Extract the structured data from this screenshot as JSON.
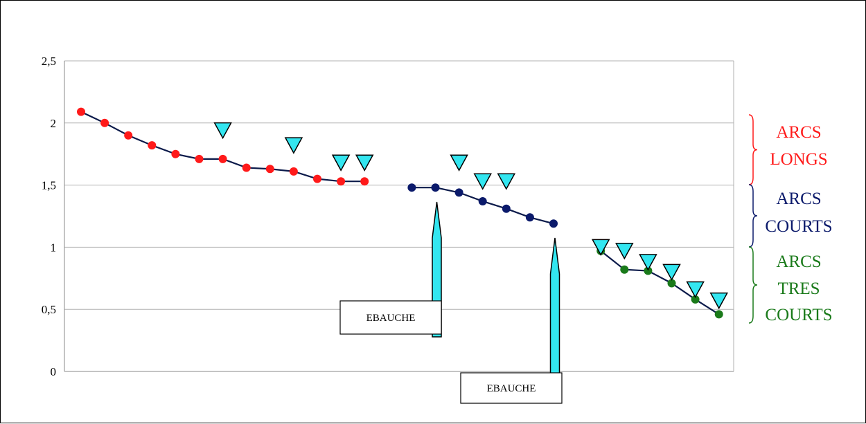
{
  "chart_data": {
    "type": "line",
    "title": "",
    "xlabel": "",
    "ylabel": "",
    "ylim": [
      0,
      2.5
    ],
    "yticks": [
      0,
      0.5,
      1,
      1.5,
      2,
      2.5
    ],
    "ytick_labels": [
      "0",
      "0,5",
      "1",
      "1,5",
      "2",
      "2,5"
    ],
    "grid": true,
    "x_count": 28,
    "series": [
      {
        "color": "#ff1a1a",
        "x": [
          1,
          2,
          3,
          4,
          5,
          6,
          7,
          8,
          9,
          10,
          11,
          12,
          13
        ],
        "values": [
          2.09,
          2.0,
          1.9,
          1.82,
          1.75,
          1.71,
          1.71,
          1.64,
          1.63,
          1.61,
          1.55,
          1.53,
          1.53
        ]
      },
      {
        "color": "#0b1a6b",
        "x": [
          15,
          16,
          17,
          18,
          19,
          20,
          21
        ],
        "values": [
          1.48,
          1.48,
          1.44,
          1.37,
          1.31,
          1.24,
          1.19
        ]
      },
      {
        "color": "#1a7a1a",
        "x": [
          23,
          24,
          25,
          26,
          27,
          28
        ],
        "values": [
          0.97,
          0.82,
          0.81,
          0.71,
          0.58,
          0.46
        ]
      }
    ],
    "markers": [
      {
        "x": 7,
        "y": 1.94
      },
      {
        "x": 10,
        "y": 1.82
      },
      {
        "x": 12,
        "y": 1.68
      },
      {
        "x": 13,
        "y": 1.68
      },
      {
        "x": 17,
        "y": 1.68
      },
      {
        "x": 18,
        "y": 1.53
      },
      {
        "x": 19,
        "y": 1.53
      },
      {
        "x": 23,
        "y": 1.0
      },
      {
        "x": 24,
        "y": 0.97
      },
      {
        "x": 25,
        "y": 0.88
      },
      {
        "x": 26,
        "y": 0.8
      },
      {
        "x": 27,
        "y": 0.66
      },
      {
        "x": 28,
        "y": 0.57
      }
    ],
    "group_labels": [
      {
        "lines": [
          "ARCS",
          "LONGS"
        ],
        "color": "#ff1a1a"
      },
      {
        "lines": [
          "ARCS",
          "COURTS"
        ],
        "color": "#0b1a6b"
      },
      {
        "lines": [
          "ARCS",
          "TRES",
          "COURTS"
        ],
        "color": "#1a7a1a"
      }
    ],
    "callouts": [
      {
        "text": "EBAUCHE",
        "x": 16
      },
      {
        "text": "EBAUCHE",
        "x": 21
      }
    ]
  },
  "colors": {
    "grid": "#b0b0b0",
    "axis": "#888888",
    "marker_fill": "#33e6f0",
    "callout_fill": "#33e6f0",
    "line": "#0b1a4a"
  }
}
